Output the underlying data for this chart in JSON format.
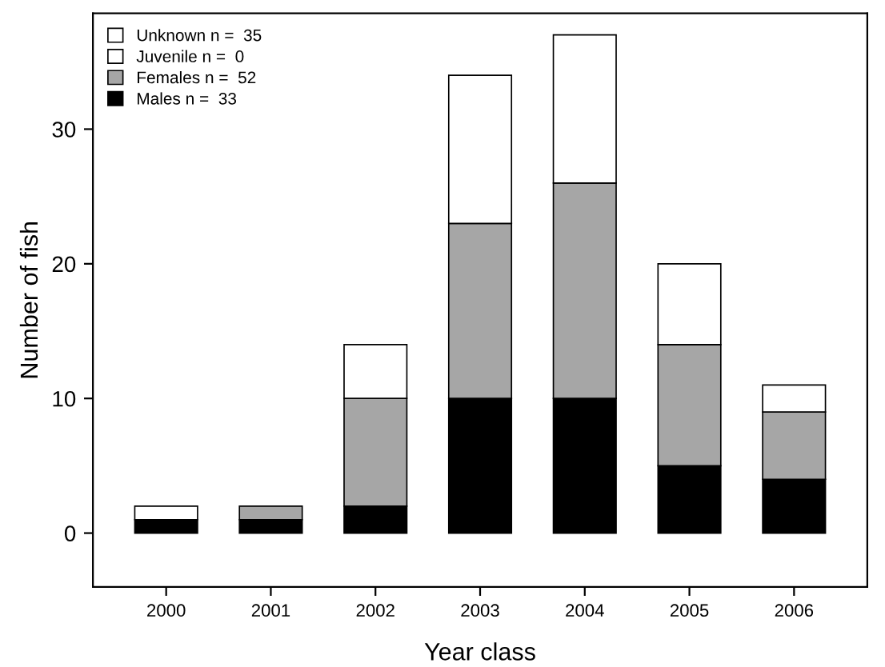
{
  "chart_data": {
    "type": "bar",
    "stacked": true,
    "xlabel": "Year class",
    "ylabel": "Number of fish",
    "categories": [
      "2000",
      "2001",
      "2002",
      "2003",
      "2004",
      "2005",
      "2006"
    ],
    "series": [
      {
        "name": "Males n =  33",
        "color": "#000000",
        "values": [
          1,
          1,
          2,
          10,
          10,
          5,
          4
        ]
      },
      {
        "name": "Females n =  52",
        "color": "#a6a6a6",
        "values": [
          0,
          1,
          8,
          13,
          16,
          9,
          5
        ]
      },
      {
        "name": "Juvenile n =  0",
        "color": "#ffffff",
        "values": [
          0,
          0,
          0,
          0,
          0,
          0,
          0
        ]
      },
      {
        "name": "Unknown n =  35",
        "color": "#ffffff",
        "values": [
          1,
          0,
          4,
          11,
          11,
          6,
          2
        ]
      }
    ],
    "ylim": [
      -4,
      38.6
    ],
    "yticks": [
      0,
      10,
      20,
      30
    ],
    "grid": false,
    "legend": "top left"
  }
}
